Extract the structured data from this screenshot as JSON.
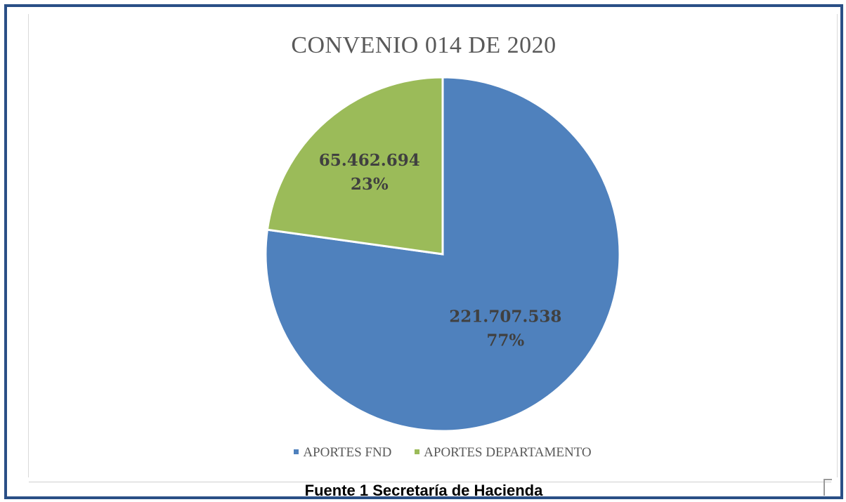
{
  "chart_data": {
    "type": "pie",
    "title": "CONVENIO 014 DE 2020",
    "slices": [
      {
        "label": "APORTES FND",
        "value": 221707538,
        "value_label": "221.707.538",
        "percent_label": "77%",
        "color": "#4f81bd"
      },
      {
        "label": "APORTES DEPARTAMENTO",
        "value": 65462694,
        "value_label": "65.462.694",
        "percent_label": "23%",
        "color": "#9bbb59"
      }
    ],
    "legend_position": "bottom"
  },
  "caption": "Fuente 1 Secretaría de Hacienda",
  "colors": {
    "frame_border": "#2a4f86",
    "slice_border": "#ffffff",
    "label_text": "#404040"
  }
}
